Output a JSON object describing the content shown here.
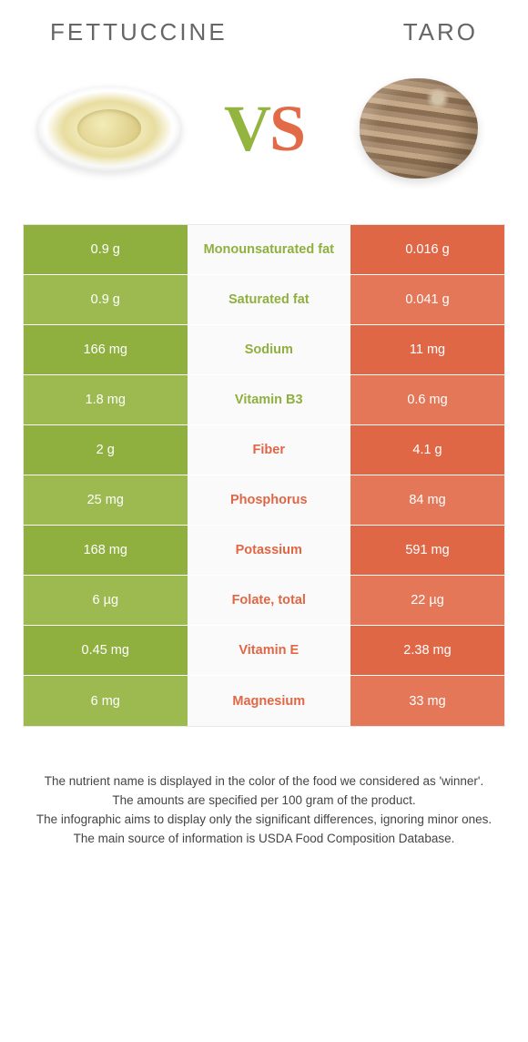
{
  "header": {
    "left_title": "FETTUCCINE",
    "right_title": "TARO"
  },
  "vs": {
    "v": "V",
    "s": "S"
  },
  "colors": {
    "left_dark": "#8fb03f",
    "left_light": "#9dba50",
    "right_dark": "#e06745",
    "right_light": "#e37758",
    "mid_green": "#8fb03f",
    "mid_orange": "#e06745",
    "header_text": "#666666",
    "footer_text": "#444444"
  },
  "table": {
    "rows": [
      {
        "left": "0.9 g",
        "label": "Monounsaturated fat",
        "right": "0.016 g",
        "winner": "left"
      },
      {
        "left": "0.9 g",
        "label": "Saturated fat",
        "right": "0.041 g",
        "winner": "left"
      },
      {
        "left": "166 mg",
        "label": "Sodium",
        "right": "11 mg",
        "winner": "left"
      },
      {
        "left": "1.8 mg",
        "label": "Vitamin B3",
        "right": "0.6 mg",
        "winner": "left"
      },
      {
        "left": "2 g",
        "label": "Fiber",
        "right": "4.1 g",
        "winner": "right"
      },
      {
        "left": "25 mg",
        "label": "Phosphorus",
        "right": "84 mg",
        "winner": "right"
      },
      {
        "left": "168 mg",
        "label": "Potassium",
        "right": "591 mg",
        "winner": "right"
      },
      {
        "left": "6 µg",
        "label": "Folate, total",
        "right": "22 µg",
        "winner": "right"
      },
      {
        "left": "0.45 mg",
        "label": "Vitamin E",
        "right": "2.38 mg",
        "winner": "right"
      },
      {
        "left": "6 mg",
        "label": "Magnesium",
        "right": "33 mg",
        "winner": "right"
      }
    ]
  },
  "footer": {
    "line1": "The nutrient name is displayed in the color of the food we considered as 'winner'.",
    "line2": "The amounts are specified per 100 gram of the product.",
    "line3": "The infographic aims to display only the significant differences, ignoring minor ones.",
    "line4": "The main source of information is USDA Food Composition Database."
  }
}
